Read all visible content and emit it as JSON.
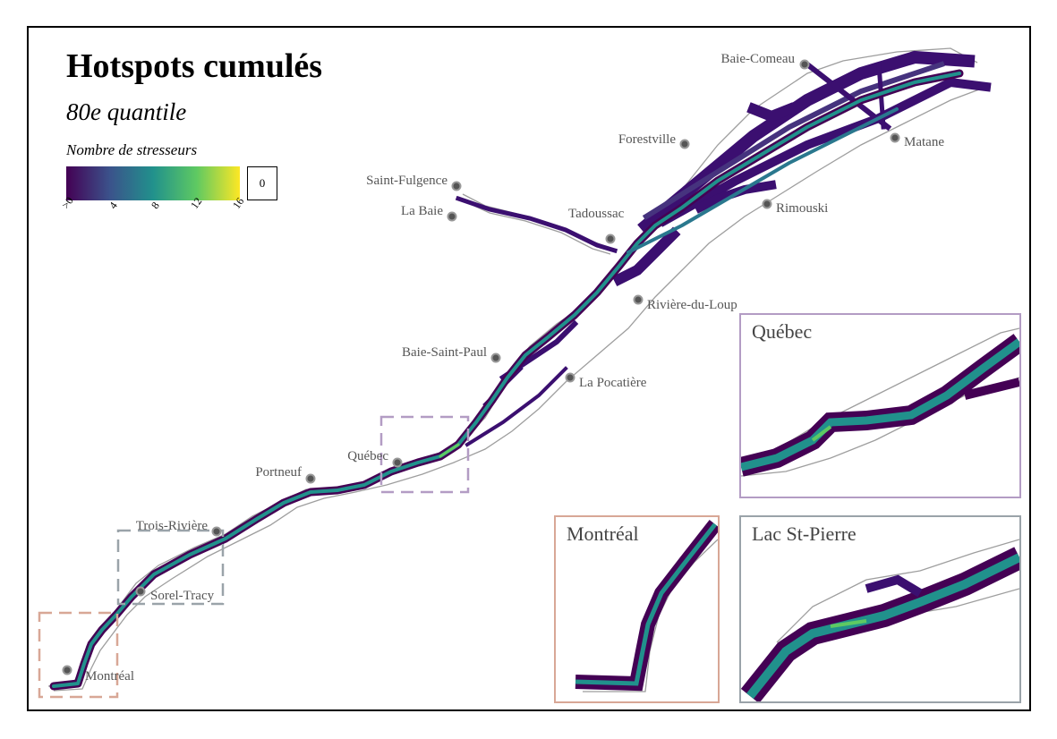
{
  "title": "Hotspots cumulés",
  "subtitle": "80e quantile",
  "legend": {
    "title": "Nombre de stresseurs",
    "ticks": [
      ">0",
      "4",
      "8",
      "12",
      "16"
    ],
    "zero_label": "0",
    "colors": [
      "#440154",
      "#3b528b",
      "#21918c",
      "#5ec962",
      "#fde725"
    ]
  },
  "cities": [
    {
      "name": "Baie-Comeau"
    },
    {
      "name": "Matane"
    },
    {
      "name": "Forestville"
    },
    {
      "name": "Rimouski"
    },
    {
      "name": "Saint-Fulgence"
    },
    {
      "name": "La Baie"
    },
    {
      "name": "Tadoussac"
    },
    {
      "name": "Rivière-du-Loup"
    },
    {
      "name": "Baie-Saint-Paul"
    },
    {
      "name": "La Pocatière"
    },
    {
      "name": "Québec"
    },
    {
      "name": "Portneuf"
    },
    {
      "name": "Trois-Rivière"
    },
    {
      "name": "Sorel-Tracy"
    },
    {
      "name": "Montréal"
    }
  ],
  "insets": {
    "quebec": {
      "label": "Québec",
      "border_color": "#b39cc4"
    },
    "montreal": {
      "label": "Montréal",
      "border_color": "#d8a796"
    },
    "lac": {
      "label": "Lac St-Pierre",
      "border_color": "#9aa3a9"
    }
  }
}
